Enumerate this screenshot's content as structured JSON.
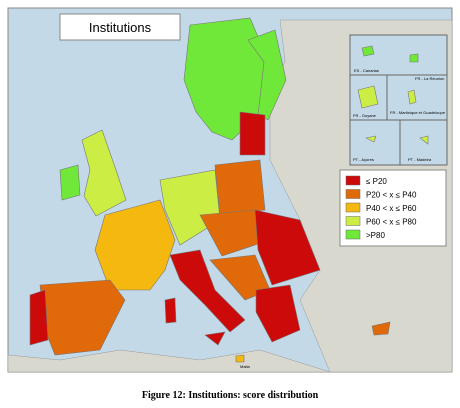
{
  "title": "Institutions",
  "legend": [
    {
      "label": "≤ P20",
      "color": "#cc0a0a"
    },
    {
      "label": "P20 < x ≤ P40",
      "color": "#e0690a"
    },
    {
      "label": "P40 < x ≤ P60",
      "color": "#f5b80f"
    },
    {
      "label": "P60 < x ≤ P80",
      "color": "#ccee44"
    },
    {
      "label": ">P80",
      "color": "#6fe83a"
    }
  ],
  "insets": [
    "ES - Canarias",
    "FR - La Réunion",
    "FR - Guyane",
    "FR - Martinique et Guadeloupe",
    "PT - Açores",
    "PT - Madeira"
  ],
  "malta": "Malta",
  "caption": "Figure 12: Institutions: score distribution"
}
